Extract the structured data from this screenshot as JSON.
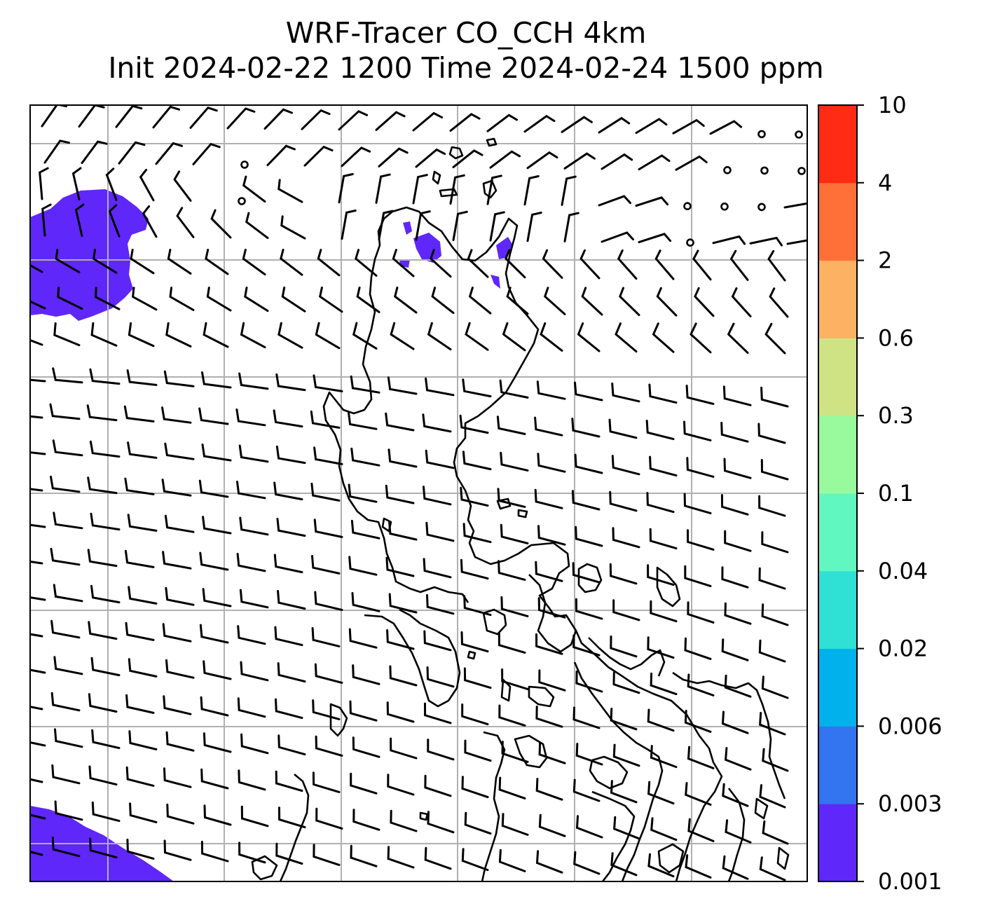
{
  "title": {
    "line1": "WRF-Tracer CO_CCH 4km",
    "line2": "Init 2024-02-22 1200 Time 2024-02-24 1500 ppm"
  },
  "colorbar": {
    "levels": [
      "0.001",
      "0.003",
      "0.006",
      "0.02",
      "0.04",
      "0.1",
      "0.3",
      "0.6",
      "2",
      "4",
      "10"
    ],
    "colors": [
      "#6027fa",
      "#3374f0",
      "#00b1ec",
      "#2ee1d4",
      "#60f7c0",
      "#98fa9c",
      "#cfe385",
      "#fdb162",
      "#ff7038",
      "#ff2b12"
    ]
  },
  "map": {
    "tracer_fill_color": "#6027fa",
    "coastline_color": "#000000",
    "grid_color": "#b0b0b0"
  }
}
